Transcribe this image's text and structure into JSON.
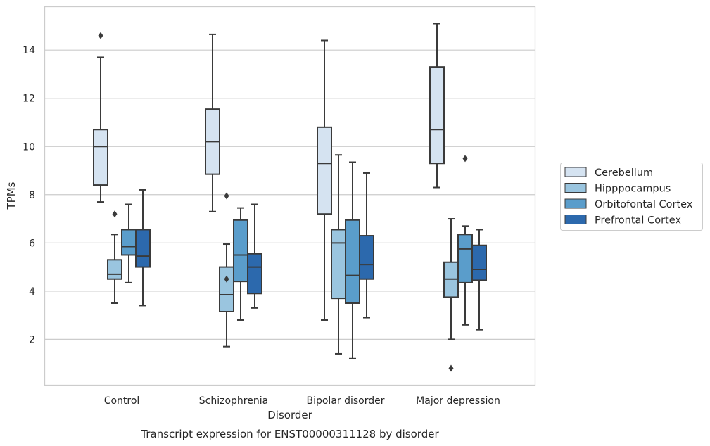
{
  "chart_data": {
    "type": "box",
    "title": "",
    "caption": "Transcript expression for ENST00000311128 by disorder",
    "xlabel": "Disorder",
    "ylabel": "TPMs",
    "ylim": [
      0.1,
      15.8
    ],
    "yticks": [
      2,
      4,
      6,
      8,
      10,
      12,
      14
    ],
    "grid": "horizontal",
    "legend_position": "right",
    "categories": [
      "Control",
      "Schizophrenia",
      "Bipolar disorder",
      "Major depression"
    ],
    "series": [
      {
        "name": "Cerebellum",
        "color": "#d5e3f1",
        "boxes": [
          {
            "whisker_low": 7.7,
            "q1": 8.4,
            "median": 10.0,
            "q3": 10.7,
            "whisker_high": 13.7,
            "outliers": [
              14.6
            ]
          },
          {
            "whisker_low": 7.3,
            "q1": 8.85,
            "median": 10.2,
            "q3": 11.55,
            "whisker_high": 14.65,
            "outliers": []
          },
          {
            "whisker_low": 2.8,
            "q1": 7.2,
            "median": 9.3,
            "q3": 10.8,
            "whisker_high": 14.4,
            "outliers": []
          },
          {
            "whisker_low": 8.3,
            "q1": 9.3,
            "median": 10.7,
            "q3": 13.3,
            "whisker_high": 15.1,
            "outliers": []
          }
        ]
      },
      {
        "name": "Hipppocampus",
        "color": "#9ac5df",
        "boxes": [
          {
            "whisker_low": 3.5,
            "q1": 4.5,
            "median": 4.7,
            "q3": 5.3,
            "whisker_high": 6.35,
            "outliers": [
              7.2
            ]
          },
          {
            "whisker_low": 1.7,
            "q1": 3.15,
            "median": 3.85,
            "q3": 5.0,
            "whisker_high": 5.95,
            "outliers": [
              4.5,
              7.95
            ]
          },
          {
            "whisker_low": 1.4,
            "q1": 3.7,
            "median": 6.0,
            "q3": 6.55,
            "whisker_high": 9.65,
            "outliers": []
          },
          {
            "whisker_low": 2.0,
            "q1": 3.75,
            "median": 4.5,
            "q3": 5.2,
            "whisker_high": 7.0,
            "outliers": [
              0.8
            ]
          }
        ]
      },
      {
        "name": "Orbitofontal Cortex",
        "color": "#5a9dcb",
        "boxes": [
          {
            "whisker_low": 4.35,
            "q1": 5.5,
            "median": 5.85,
            "q3": 6.55,
            "whisker_high": 7.6,
            "outliers": []
          },
          {
            "whisker_low": 2.8,
            "q1": 4.4,
            "median": 5.5,
            "q3": 6.95,
            "whisker_high": 7.45,
            "outliers": []
          },
          {
            "whisker_low": 1.2,
            "q1": 3.5,
            "median": 4.65,
            "q3": 6.95,
            "whisker_high": 9.35,
            "outliers": []
          },
          {
            "whisker_low": 2.6,
            "q1": 4.35,
            "median": 5.75,
            "q3": 6.35,
            "whisker_high": 6.7,
            "outliers": [
              9.5
            ]
          }
        ]
      },
      {
        "name": "Prefrontal Cortex",
        "color": "#2c69ad",
        "boxes": [
          {
            "whisker_low": 3.4,
            "q1": 5.0,
            "median": 5.45,
            "q3": 6.55,
            "whisker_high": 8.2,
            "outliers": []
          },
          {
            "whisker_low": 3.3,
            "q1": 3.9,
            "median": 5.0,
            "q3": 5.55,
            "whisker_high": 7.6,
            "outliers": []
          },
          {
            "whisker_low": 2.9,
            "q1": 4.5,
            "median": 5.1,
            "q3": 6.3,
            "whisker_high": 8.9,
            "outliers": []
          },
          {
            "whisker_low": 2.4,
            "q1": 4.45,
            "median": 4.9,
            "q3": 5.9,
            "whisker_high": 6.55,
            "outliers": []
          }
        ]
      }
    ]
  }
}
